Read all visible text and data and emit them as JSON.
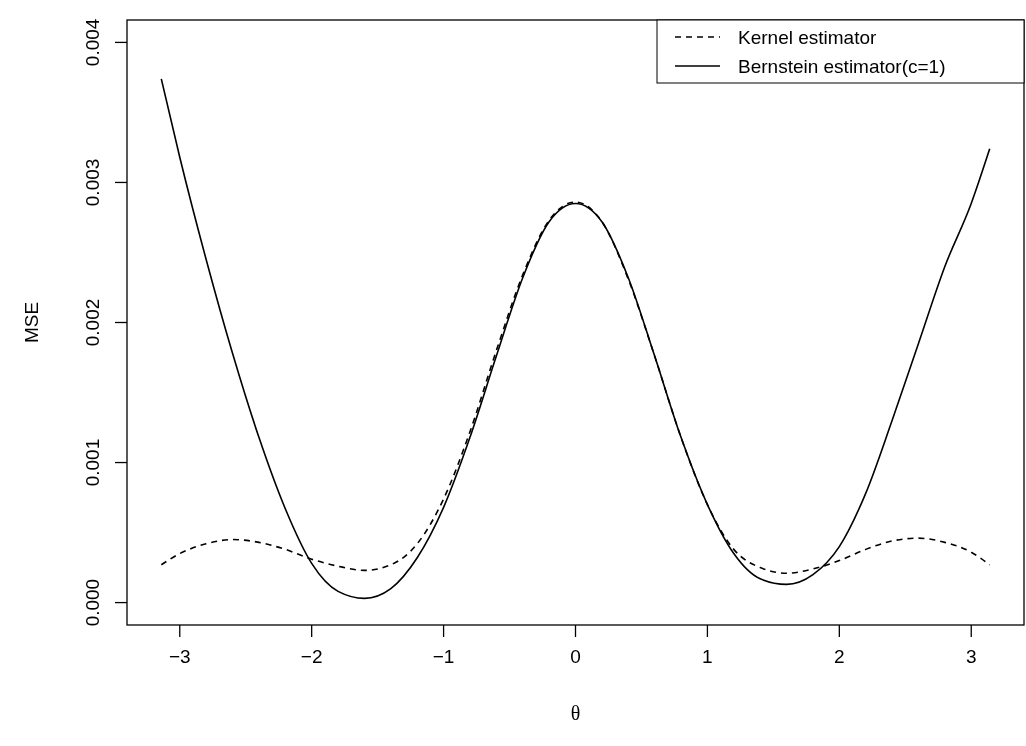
{
  "chart_data": {
    "type": "line",
    "xlabel": "θ",
    "ylabel": "MSE",
    "xlim": [
      -3.4,
      3.4
    ],
    "ylim": [
      -0.00016,
      0.00416
    ],
    "xticks": [
      {
        "value": -3,
        "label": "−3"
      },
      {
        "value": -2,
        "label": "−2"
      },
      {
        "value": -1,
        "label": "−1"
      },
      0,
      1,
      2,
      3
    ],
    "yticks": [
      {
        "value": 0,
        "label": "0.000"
      },
      {
        "value": 0.001,
        "label": "0.001"
      },
      {
        "value": 0.002,
        "label": "0.002"
      },
      {
        "value": 0.003,
        "label": "0.003"
      },
      {
        "value": 0.004,
        "label": "0.004"
      }
    ],
    "legend": "top right",
    "grid": false,
    "marker": "none",
    "x": [
      -3.14,
      -3.0,
      -2.8,
      -2.6,
      -2.4,
      -2.2,
      -2.0,
      -1.8,
      -1.6,
      -1.4,
      -1.2,
      -1.0,
      -0.8,
      -0.6,
      -0.4,
      -0.2,
      0,
      0.2,
      0.4,
      0.6,
      0.8,
      1.0,
      1.2,
      1.4,
      1.6,
      1.8,
      2.0,
      2.2,
      2.4,
      2.6,
      2.8,
      3.0,
      3.14
    ],
    "series": [
      {
        "name": "Kernel estimator",
        "color": "#000000",
        "line_style": "dashed",
        "values": [
          0.00027,
          0.00035,
          0.00042,
          0.00045,
          0.00043,
          0.00038,
          0.00031,
          0.00026,
          0.00023,
          0.00027,
          0.00042,
          0.00074,
          0.00122,
          0.0018,
          0.00234,
          0.00273,
          0.00286,
          0.00272,
          0.00231,
          0.00176,
          0.00118,
          0.0007,
          0.00038,
          0.00025,
          0.00021,
          0.00024,
          0.0003,
          0.00038,
          0.00044,
          0.00046,
          0.00043,
          0.00036,
          0.00027
        ]
      },
      {
        "name": "Bernstein estimator(c=1)",
        "color": "#000000",
        "line_style": "solid",
        "values": [
          0.00374,
          0.00318,
          0.00245,
          0.00178,
          0.00118,
          0.00067,
          0.00028,
          8e-05,
          3e-05,
          0.0001,
          0.00032,
          0.00068,
          0.00118,
          0.00176,
          0.00232,
          0.00272,
          0.00285,
          0.00272,
          0.00232,
          0.00176,
          0.00118,
          0.0007,
          0.00035,
          0.00017,
          0.00013,
          0.0002,
          0.0004,
          0.00078,
          0.0013,
          0.00185,
          0.0024,
          0.00285,
          0.00324
        ]
      }
    ]
  }
}
